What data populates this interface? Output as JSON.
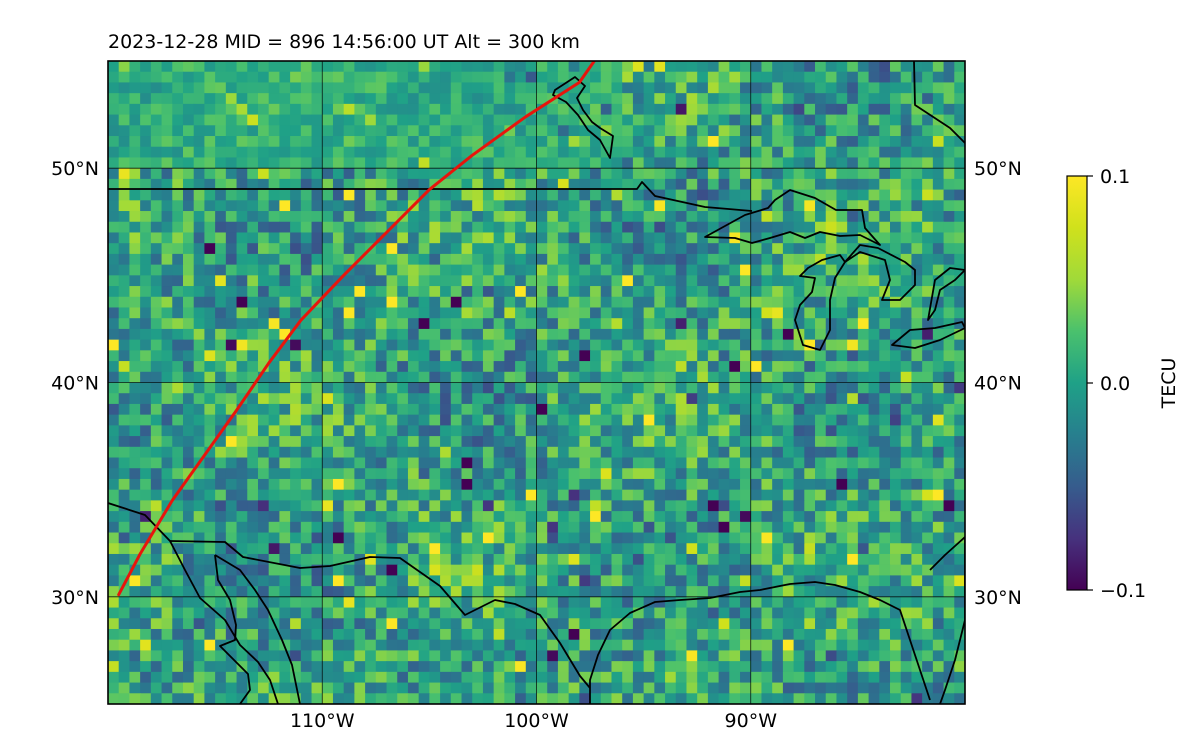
{
  "map": {
    "title": "2023-12-28  MID = 896    14:56:00  UT  Alt = 300 km",
    "lon_range": [
      -120,
      -80
    ],
    "lat_range": [
      25,
      55
    ],
    "lon_ticks": [
      {
        "value": -110,
        "label": "110°W"
      },
      {
        "value": -100,
        "label": "100°W"
      },
      {
        "value": -90,
        "label": "90°W"
      }
    ],
    "lat_ticks": [
      {
        "value": 50,
        "label": "50°N"
      },
      {
        "value": 40,
        "label": "40°N"
      },
      {
        "value": 30,
        "label": "30°N"
      }
    ],
    "grid": true,
    "field": {
      "quantity": "TEC perturbation",
      "colormap": "viridis",
      "vmin": -0.1,
      "vmax": 0.1
    },
    "track": {
      "color": "#e8150c",
      "points": [
        [
          -119.5,
          30.1
        ],
        [
          -118.5,
          32.0
        ],
        [
          -117.0,
          34.5
        ],
        [
          -115.5,
          36.6
        ],
        [
          -114.0,
          38.7
        ],
        [
          -112.5,
          40.9
        ],
        [
          -111.0,
          42.9
        ],
        [
          -109.0,
          45.0
        ],
        [
          -107.0,
          47.0
        ],
        [
          -105.0,
          49.0
        ],
        [
          -103.0,
          50.6
        ],
        [
          -100.5,
          52.4
        ],
        [
          -98.0,
          54.0
        ],
        [
          -97.3,
          55.0
        ]
      ]
    }
  },
  "colorbar": {
    "label": "TECU",
    "ticks": [
      {
        "value": 0.1,
        "label": "0.1"
      },
      {
        "value": 0.0,
        "label": "0.0"
      },
      {
        "value": -0.1,
        "label": "−0.1"
      }
    ]
  }
}
